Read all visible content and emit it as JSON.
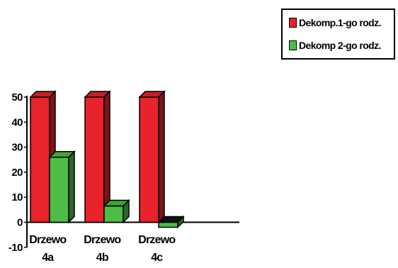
{
  "chart_data": {
    "type": "bar",
    "categories": [
      "Drzewo 4a",
      "Drzewo 4b",
      "Drzewo 4c"
    ],
    "category_lines": [
      [
        "Drzewo",
        "4a"
      ],
      [
        "Drzewo",
        "4b"
      ],
      [
        "Drzewo",
        "4c"
      ]
    ],
    "series": [
      {
        "name": "Dekomp.1-go rodz.",
        "values": [
          50,
          50,
          50
        ],
        "color": "#e8232b"
      },
      {
        "name": "Dekomp 2-go rodz.",
        "values": [
          26,
          6.5,
          -2
        ],
        "color": "#4dbd45"
      }
    ],
    "ylim": [
      -10,
      50
    ],
    "yticks": [
      -10,
      0,
      10,
      20,
      30,
      40,
      50
    ],
    "ytick_labels": [
      "-10",
      "0",
      "10",
      "20",
      "30",
      "40",
      "50"
    ],
    "style": "3d",
    "legend_position": "top-right",
    "grid": false
  }
}
